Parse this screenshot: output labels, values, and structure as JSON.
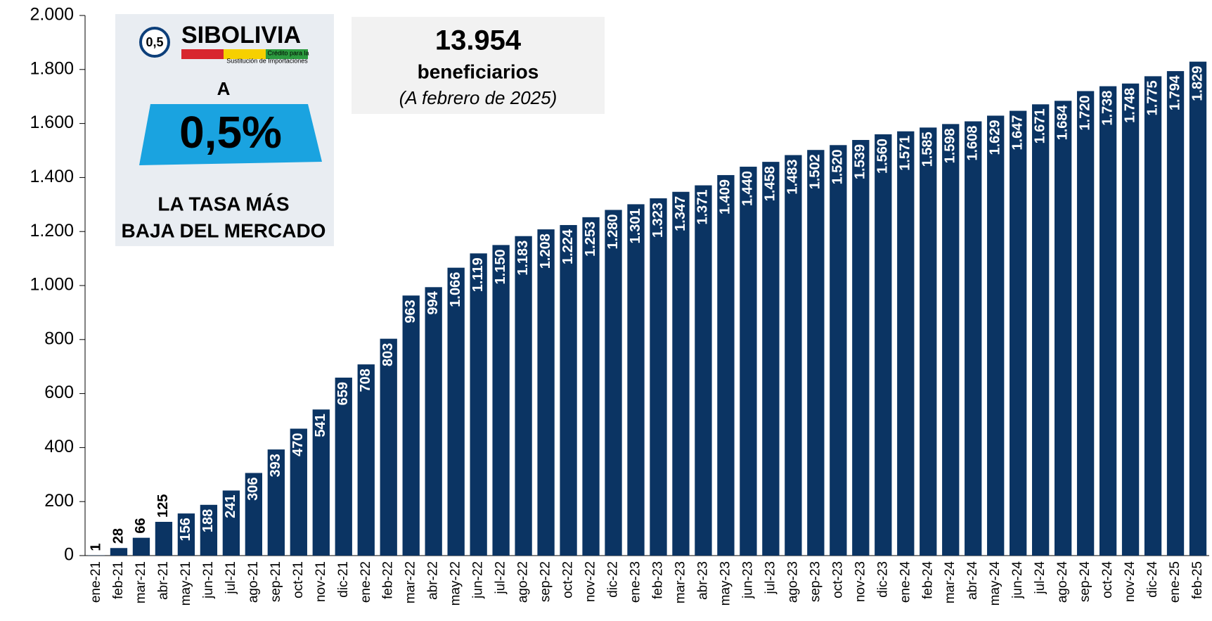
{
  "chart_data": {
    "type": "bar",
    "categories": [
      "ene-21",
      "feb-21",
      "mar-21",
      "abr-21",
      "may-21",
      "jun-21",
      "jul-21",
      "ago-21",
      "sep-21",
      "oct-21",
      "nov-21",
      "dic-21",
      "ene-22",
      "feb-22",
      "mar-22",
      "abr-22",
      "may-22",
      "jun-22",
      "jul-22",
      "ago-22",
      "sep-22",
      "oct-22",
      "nov-22",
      "dic-22",
      "ene-23",
      "feb-23",
      "mar-23",
      "abr-23",
      "may-23",
      "jun-23",
      "jul-23",
      "ago-23",
      "sep-23",
      "oct-23",
      "nov-23",
      "dic-23",
      "ene-24",
      "feb-24",
      "mar-24",
      "abr-24",
      "may-24",
      "jun-24",
      "jul-24",
      "ago-24",
      "sep-24",
      "oct-24",
      "nov-24",
      "dic-24",
      "ene-25",
      "feb-25"
    ],
    "values": [
      1,
      28,
      66,
      125,
      156,
      188,
      241,
      306,
      393,
      470,
      541,
      659,
      708,
      803,
      963,
      994,
      1066,
      1119,
      1150,
      1183,
      1208,
      1224,
      1253,
      1280,
      1301,
      1323,
      1347,
      1371,
      1409,
      1440,
      1458,
      1483,
      1502,
      1520,
      1539,
      1560,
      1571,
      1585,
      1598,
      1608,
      1629,
      1647,
      1671,
      1684,
      1720,
      1738,
      1748,
      1775,
      1794,
      1829
    ],
    "value_labels": [
      "1",
      "28",
      "66",
      "125",
      "156",
      "188",
      "241",
      "306",
      "393",
      "470",
      "541",
      "659",
      "708",
      "803",
      "963",
      "994",
      "1.066",
      "1.119",
      "1.150",
      "1.183",
      "1.208",
      "1.224",
      "1.253",
      "1.280",
      "1.301",
      "1.323",
      "1.347",
      "1.371",
      "1.409",
      "1.440",
      "1.458",
      "1.483",
      "1.502",
      "1.520",
      "1.539",
      "1.560",
      "1.571",
      "1.585",
      "1.598",
      "1.608",
      "1.629",
      "1.647",
      "1.671",
      "1.684",
      "1.720",
      "1.738",
      "1.748",
      "1.775",
      "1.794",
      "1.829"
    ],
    "color": "#0b3463",
    "ylim": [
      0,
      2000
    ],
    "yticks": [
      0,
      200,
      400,
      600,
      800,
      {
        "value": 1000,
        "label": "1.000"
      },
      {
        "value": 1200,
        "label": "1.200"
      },
      {
        "value": 1400,
        "label": "1.400"
      },
      {
        "value": 1600,
        "label": "1.600"
      },
      {
        "value": 1800,
        "label": "1.800"
      },
      {
        "value": 2000,
        "label": "2.000"
      }
    ],
    "summary": {
      "total": "13.954",
      "label": "beneficiarios",
      "note": "(A febrero de 2025)"
    },
    "badge": {
      "rate_small": "0,5",
      "brand": "SIBOLIVIA",
      "tagline1": "Crédito para la",
      "tagline2": "Sustitución de Importaciones",
      "prefix": "A",
      "rate": "0,5%",
      "line1": "LA TASA MÁS",
      "line2": "BAJA DEL MERCADO"
    }
  }
}
